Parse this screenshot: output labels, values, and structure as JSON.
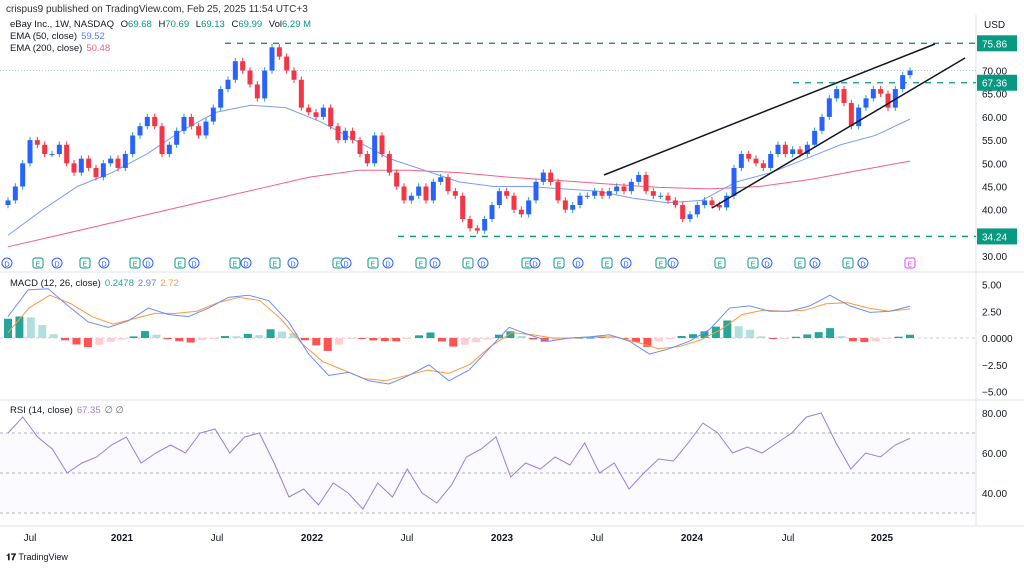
{
  "header": {
    "published": "crispus9 published on TradingView.com, Feb 25, 2025 11:54 UTC+3"
  },
  "legend": {
    "symbol": "eBay Inc., 1W, NASDAQ",
    "o_label": "O",
    "o": "69.68",
    "h_label": "H",
    "h": "70.69",
    "l_label": "L",
    "l": "69.13",
    "c_label": "C",
    "c": "69.99",
    "vol_label": "Vol",
    "vol": "6.29 M",
    "ema50_label": "EMA (50, close)",
    "ema50": "59.52",
    "ema200_label": "EMA (200, close)",
    "ema200": "50.48",
    "macd_label": "MACD (12, 26, close)",
    "macd_hist": "0.2478",
    "macd": "2.97",
    "macd_signal": "2.72",
    "rsi_label": "RSI (14, close)",
    "rsi": "67.35",
    "rsi_extra": "∅ ∅"
  },
  "colors": {
    "up": "#2962ff",
    "down": "#f23645",
    "ema50": "#7b9cff",
    "ema200": "#f0608a",
    "macd": "#6b8cff",
    "signal": "#ff9a3c",
    "rsi": "#9c7ee0",
    "level": "#089981",
    "hist_up": "#26a69a",
    "hist_up_light": "#b2dfdb",
    "hist_down": "#ff5252",
    "hist_down_light": "#ffcdd2"
  },
  "footer": {
    "logo": "TradingView"
  },
  "chart_data": [
    {
      "type": "candlestick",
      "title": "eBay Inc., 1W, NASDAQ",
      "currency": "USD",
      "ylim": [
        28,
        78
      ],
      "yticks": [
        "70.00",
        "65.00",
        "60.00",
        "55.00",
        "50.00",
        "45.00",
        "40.00",
        "30.00"
      ],
      "xticks": [
        "Jul",
        "2021",
        "Jul",
        "2022",
        "Jul",
        "2023",
        "Jul",
        "2024",
        "Jul",
        "2025"
      ],
      "closes": [
        42,
        45,
        50,
        55,
        54,
        52,
        52,
        54,
        50,
        48,
        51,
        49,
        47,
        50,
        51,
        49,
        52,
        56,
        58,
        60,
        58,
        52,
        54,
        57,
        60,
        58,
        56,
        59,
        62,
        66,
        68,
        72,
        70,
        67,
        64,
        70,
        75,
        73,
        70,
        68,
        62,
        61,
        60,
        62,
        58,
        55,
        57,
        55,
        52,
        50,
        56,
        52,
        48,
        45,
        42,
        43,
        45,
        42,
        46,
        47,
        44,
        43,
        38,
        36,
        35.5,
        38,
        41,
        44,
        43,
        40,
        39,
        42,
        46,
        48,
        46,
        42,
        40,
        41,
        43,
        43,
        44,
        43,
        44,
        45,
        44,
        46,
        47.5,
        44,
        43,
        43,
        42,
        41,
        38,
        39,
        41,
        42,
        41,
        40.5,
        43,
        49,
        52,
        51,
        50,
        49,
        52,
        54,
        52,
        53,
        52,
        54,
        57,
        60,
        64,
        66,
        63,
        58,
        62,
        64,
        66,
        65,
        62,
        66,
        69,
        69.99
      ],
      "ema50": [
        34.5,
        40,
        45,
        48,
        52,
        57,
        61,
        62.5,
        62,
        59,
        55,
        51,
        48.5,
        46,
        45,
        45,
        44.5,
        44,
        42.5,
        41.5,
        42,
        46,
        48,
        51,
        54,
        56,
        59.52
      ],
      "ema200": [
        32,
        34.5,
        37,
        39.5,
        42,
        44.5,
        47,
        48.5,
        48.5,
        48,
        47,
        46.3,
        45.5,
        44.8,
        44.5,
        45,
        46.5,
        48.5,
        50.48
      ],
      "levels": [
        {
          "value": 75.86,
          "label": "75.86"
        },
        {
          "value": 67.36,
          "label": "67.36"
        },
        {
          "value": 34.24,
          "label": "34.24"
        }
      ],
      "last_price": 69.99,
      "events": [
        "D",
        "E",
        "D",
        "E",
        "D",
        "E",
        "D",
        "E",
        "D",
        "E",
        "D",
        "E",
        "D",
        "E",
        "D",
        "E",
        "D",
        "E",
        "D",
        "E",
        "D",
        "E",
        "D",
        "E",
        "D",
        "E",
        "D",
        "E",
        "D",
        "E",
        "E",
        "D",
        "E",
        "D",
        "E",
        "D",
        "E"
      ]
    },
    {
      "type": "line",
      "title": "MACD (12, 26, close)",
      "ylim": [
        -5.5,
        5.5
      ],
      "yticks": [
        "5.00",
        "2.50",
        "0.0000",
        "−2.50",
        "−5.00"
      ],
      "macd": [
        2.0,
        4.5,
        4.6,
        3.0,
        1.5,
        1.0,
        1.6,
        2.8,
        2.2,
        2.0,
        2.8,
        3.8,
        4.0,
        3.5,
        1.5,
        -1.5,
        -3.5,
        -3.2,
        -4.0,
        -4.3,
        -3.5,
        -2.5,
        -4.0,
        -3.0,
        -1.0,
        1.0,
        0.3,
        -0.3,
        0,
        0.1,
        0.3,
        -0.3,
        -1.5,
        -1.0,
        -0.3,
        0.8,
        2.8,
        3.0,
        2.5,
        2.5,
        3.0,
        4.0,
        3.0,
        2.4,
        2.5,
        2.97
      ],
      "signal": [
        0.5,
        2.8,
        4.0,
        3.2,
        2.0,
        1.3,
        1.8,
        2.3,
        2.3,
        2.5,
        3.3,
        3.8,
        3.5,
        1.8,
        -0.5,
        -2.2,
        -3.0,
        -3.8,
        -4.0,
        -3.5,
        -3.0,
        -3.3,
        -2.5,
        -0.8,
        0.5,
        0.3,
        0,
        0,
        0.1,
        0.1,
        -0.4,
        -1.0,
        -0.8,
        -0.2,
        0.8,
        2.2,
        2.6,
        2.5,
        2.6,
        3.2,
        3.3,
        2.8,
        2.5,
        2.72
      ]
    },
    {
      "type": "line",
      "title": "RSI (14, close)",
      "ylim": [
        25,
        85
      ],
      "yticks": [
        "80.00",
        "60.00",
        "40.00"
      ],
      "bands": [
        70,
        50,
        30
      ],
      "rsi": [
        70,
        78,
        68,
        62,
        50,
        55,
        58,
        64,
        68,
        55,
        60,
        64,
        60,
        70,
        72,
        60,
        68,
        70,
        55,
        38,
        42,
        34,
        45,
        40,
        32,
        45,
        38,
        52,
        40,
        35,
        44,
        58,
        62,
        68,
        48,
        55,
        52,
        58,
        54,
        65,
        50,
        55,
        42,
        50,
        57,
        56,
        65,
        75,
        70,
        60,
        63,
        60,
        65,
        70,
        78,
        80,
        65,
        52,
        60,
        58,
        64,
        67.35
      ]
    }
  ]
}
